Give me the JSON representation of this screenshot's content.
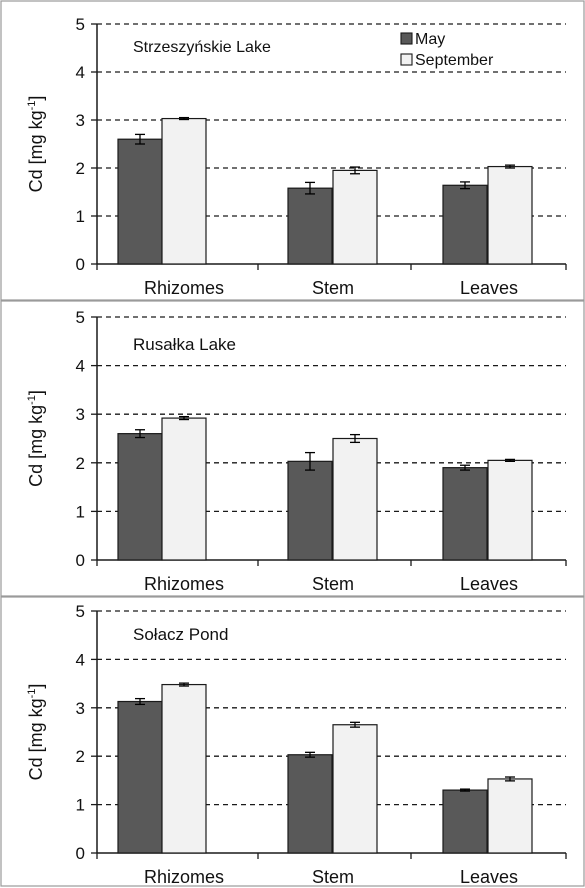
{
  "chart_data": [
    {
      "type": "bar",
      "title": "Strzeszyńskie Lake",
      "ylabel_main": "Cd [mg kg",
      "ylabel_sup": "-1",
      "ylabel_close": "]",
      "ylim": [
        0,
        5
      ],
      "yticks": [
        "0",
        "1",
        "2",
        "3",
        "4",
        "5"
      ],
      "grid": "dashed horizontal",
      "categories": [
        "Rhizomes",
        "Stem",
        "Leaves"
      ],
      "series": [
        {
          "name": "May",
          "values": [
            2.6,
            1.58,
            1.64
          ],
          "errors": [
            0.1,
            0.12,
            0.07
          ]
        },
        {
          "name": "September",
          "values": [
            3.03,
            1.95,
            2.03
          ],
          "errors": [
            0.02,
            0.07,
            0.03
          ]
        }
      ],
      "legend": "top-right"
    },
    {
      "type": "bar",
      "title": "Rusałka Lake",
      "ylabel_main": "Cd [mg kg",
      "ylabel_sup": "-1",
      "ylabel_close": "]",
      "ylim": [
        0,
        5
      ],
      "yticks": [
        "0",
        "1",
        "2",
        "3",
        "4",
        "5"
      ],
      "grid": "dashed horizontal",
      "categories": [
        "Rhizomes",
        "Stem",
        "Leaves"
      ],
      "series": [
        {
          "name": "May",
          "values": [
            2.6,
            2.03,
            1.9
          ],
          "errors": [
            0.08,
            0.18,
            0.05
          ]
        },
        {
          "name": "September",
          "values": [
            2.92,
            2.5,
            2.05
          ],
          "errors": [
            0.03,
            0.08,
            0.02
          ]
        }
      ]
    },
    {
      "type": "bar",
      "title": "Sołacz Pond",
      "ylabel_main": "Cd [mg kg",
      "ylabel_sup": "-1",
      "ylabel_close": "]",
      "ylim": [
        0,
        5
      ],
      "yticks": [
        "0",
        "1",
        "2",
        "3",
        "4",
        "5"
      ],
      "grid": "dashed horizontal",
      "categories": [
        "Rhizomes",
        "Stem",
        "Leaves"
      ],
      "series": [
        {
          "name": "May",
          "values": [
            3.13,
            2.03,
            1.3
          ],
          "errors": [
            0.06,
            0.05,
            0.02
          ]
        },
        {
          "name": "September",
          "values": [
            3.48,
            2.65,
            1.53
          ],
          "errors": [
            0.03,
            0.05,
            0.04
          ]
        }
      ]
    }
  ],
  "colors": {
    "may": "#595959",
    "september": "#f2f2f2",
    "stroke": "#1a1a1a",
    "grid": "#1a1a1a"
  }
}
